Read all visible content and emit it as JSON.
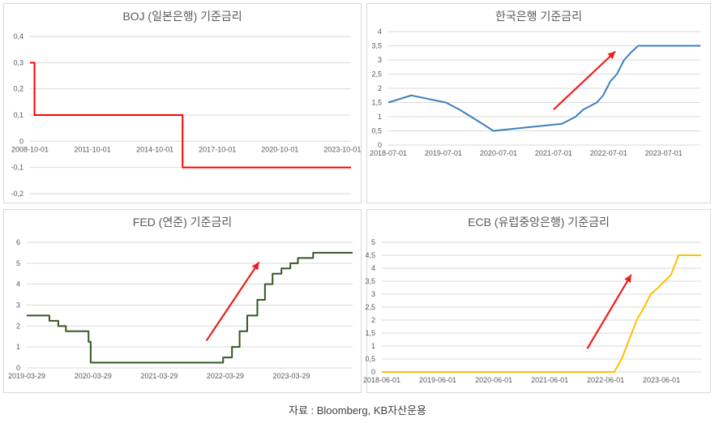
{
  "source_note": "자료 : Bloomberg, KB자산운용",
  "chart_data": [
    {
      "type": "line",
      "title": "BOJ (일본은행) 기준금리",
      "color": "#ff0000",
      "x_ticks": [
        "2008-10-01",
        "2011-10-01",
        "2014-10-01",
        "2017-10-01",
        "2020-10-01",
        "2023-10-01"
      ],
      "x_range": [
        "2008-10-01",
        "2024-03-01"
      ],
      "ylim": [
        -0.2,
        0.4
      ],
      "y_ticks": [
        "0,4",
        "0,3",
        "0,2",
        "0,1",
        "0",
        "-0,1",
        "-0,2"
      ],
      "y_tick_values": [
        0.4,
        0.3,
        0.2,
        0.1,
        0,
        -0.1,
        -0.2
      ],
      "series": [
        {
          "x": [
            "2008-10-01",
            "2008-12-19",
            "2016-01-29",
            "2024-03-01"
          ],
          "values": [
            0.3,
            0.1,
            -0.1,
            -0.1
          ],
          "step": true
        }
      ],
      "arrow": null
    },
    {
      "type": "line",
      "title": "한국은행 기준금리",
      "color": "#3f7fbf",
      "x_ticks": [
        "2018-07-01",
        "2019-07-01",
        "2020-07-01",
        "2021-07-01",
        "2022-07-01",
        "2023-07-01"
      ],
      "x_range": [
        "2018-07-01",
        "2024-03-01"
      ],
      "ylim": [
        0,
        4
      ],
      "y_ticks": [
        "4",
        "3,5",
        "3",
        "2,5",
        "2",
        "1,5",
        "1",
        "0,5",
        "0"
      ],
      "y_tick_values": [
        4,
        3.5,
        3,
        2.5,
        2,
        1.5,
        1,
        0.5,
        0
      ],
      "series": [
        {
          "x": [
            "2018-07-01",
            "2018-11-30",
            "2019-07-18",
            "2019-10-16",
            "2020-03-16",
            "2020-05-28",
            "2021-08-26",
            "2021-11-25",
            "2022-01-14",
            "2022-04-14",
            "2022-05-26",
            "2022-07-13",
            "2022-08-25",
            "2022-10-12",
            "2022-11-24",
            "2023-01-13",
            "2024-03-01"
          ],
          "values": [
            1.5,
            1.75,
            1.5,
            1.25,
            0.75,
            0.5,
            0.75,
            1.0,
            1.25,
            1.5,
            1.75,
            2.25,
            2.5,
            3.0,
            3.25,
            3.5,
            3.5
          ],
          "step": false
        }
      ],
      "arrow": {
        "from": [
          "2021-07-01",
          1.25
        ],
        "to": [
          "2022-08-15",
          3.3
        ]
      }
    },
    {
      "type": "line",
      "title": "FED (연준) 기준금리",
      "color": "#375623",
      "x_ticks": [
        "2019-03-29",
        "2020-03-29",
        "2021-03-29",
        "2022-03-29",
        "2023-03-29"
      ],
      "x_range": [
        "2019-03-29",
        "2024-03-01"
      ],
      "ylim": [
        0,
        6
      ],
      "y_ticks": [
        "6",
        "5",
        "4",
        "3",
        "2",
        "1",
        "0"
      ],
      "y_tick_values": [
        6,
        5,
        4,
        3,
        2,
        1,
        0
      ],
      "series": [
        {
          "x": [
            "2019-03-29",
            "2019-08-01",
            "2019-09-19",
            "2019-10-31",
            "2020-03-04",
            "2020-03-16",
            "2022-03-17",
            "2022-05-05",
            "2022-06-16",
            "2022-07-28",
            "2022-09-22",
            "2022-11-03",
            "2022-12-15",
            "2023-02-02",
            "2023-03-23",
            "2023-05-04",
            "2023-07-27",
            "2024-03-01"
          ],
          "values": [
            2.5,
            2.25,
            2.0,
            1.75,
            1.25,
            0.25,
            0.5,
            1.0,
            1.75,
            2.5,
            3.25,
            4.0,
            4.5,
            4.75,
            5.0,
            5.25,
            5.5,
            5.5
          ],
          "step": true
        }
      ],
      "arrow": {
        "from": [
          "2021-12-15",
          1.3
        ],
        "to": [
          "2022-10-01",
          5.05
        ]
      }
    },
    {
      "type": "line",
      "title": "ECB (유럽중앙은행) 기준금리",
      "color": "#ffc000",
      "x_ticks": [
        "2018-06-01",
        "2019-06-01",
        "2020-06-01",
        "2021-06-01",
        "2022-06-01",
        "2023-06-01"
      ],
      "x_range": [
        "2018-06-01",
        "2024-02-15"
      ],
      "ylim": [
        0,
        5
      ],
      "y_ticks": [
        "5",
        "4,5",
        "4",
        "3,5",
        "3",
        "2,5",
        "2",
        "1,5",
        "1",
        "0,5",
        "0"
      ],
      "y_tick_values": [
        5,
        4.5,
        4,
        3.5,
        3,
        2.5,
        2,
        1.5,
        1,
        0.5,
        0
      ],
      "series": [
        {
          "x": [
            "2018-06-01",
            "2022-07-27",
            "2022-09-14",
            "2022-11-02",
            "2022-12-21",
            "2023-02-08",
            "2023-03-22",
            "2023-05-10",
            "2023-06-21",
            "2023-08-02",
            "2023-09-20",
            "2024-02-15"
          ],
          "values": [
            0,
            0,
            0.5,
            1.25,
            2.0,
            2.5,
            3.0,
            3.25,
            3.5,
            3.75,
            4.5,
            4.5
          ],
          "step": false
        }
      ],
      "arrow": {
        "from": [
          "2022-02-01",
          0.9
        ],
        "to": [
          "2022-11-15",
          3.75
        ]
      }
    }
  ]
}
